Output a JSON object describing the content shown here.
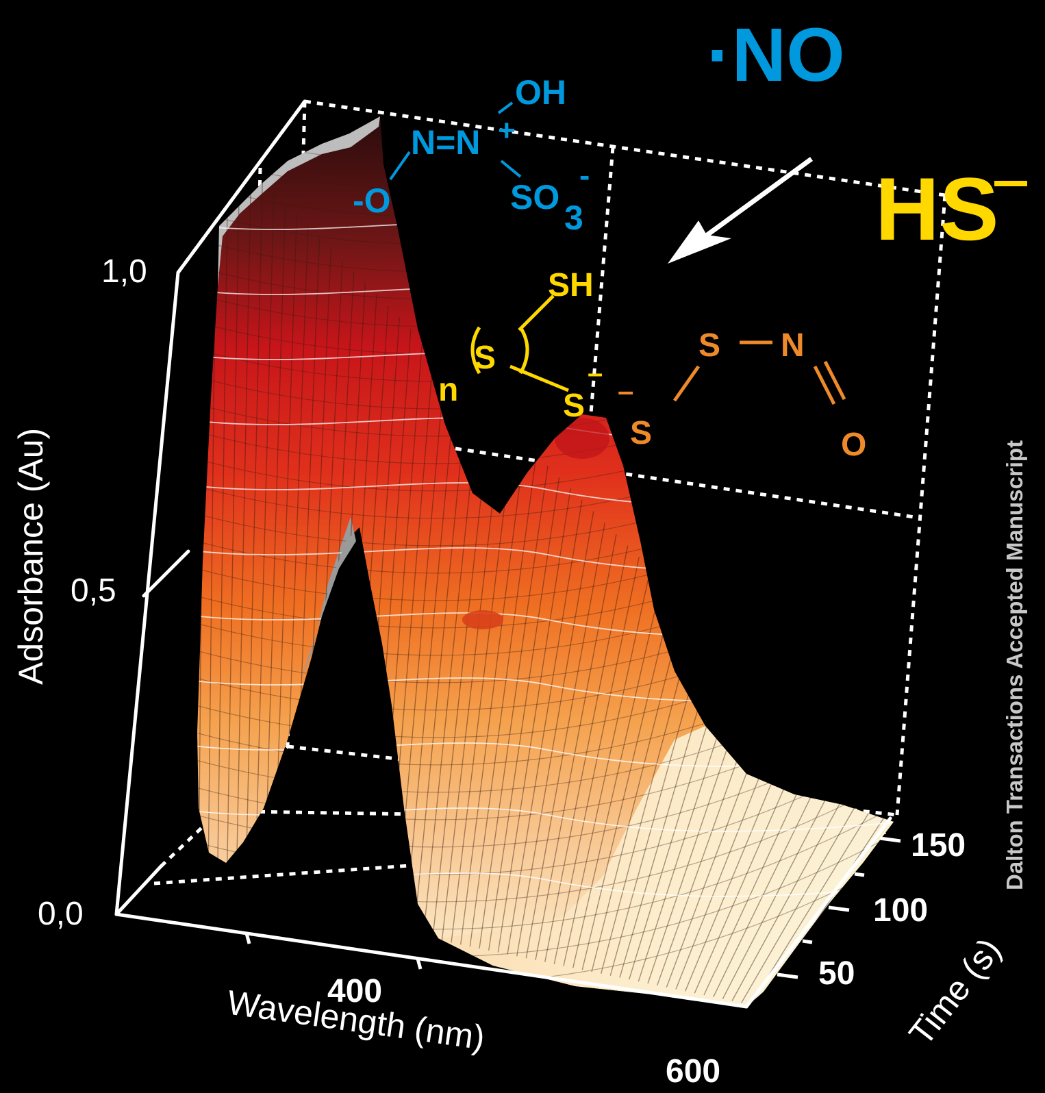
{
  "chart_data": {
    "type": "surface",
    "xlabel": "Wavelength (nm)",
    "ylabel": "Time (s)",
    "zlabel": "Adsorbance (Au)",
    "x_ticks": [
      "400",
      "600"
    ],
    "y_ticks": [
      "50",
      "100",
      "150"
    ],
    "z_ticks": [
      "0,0",
      "0,5",
      "1,0"
    ],
    "xlim": [
      250,
      600
    ],
    "ylim": [
      0,
      160
    ],
    "zlim": [
      0,
      1.0
    ],
    "grid": true,
    "series": [
      {
        "time": 150,
        "wavelength": [
          260,
          300,
          330,
          360,
          400,
          450,
          500,
          550,
          600
        ],
        "absorbance": [
          0.95,
          0.4,
          0.1,
          0.55,
          0.3,
          0.12,
          0.04,
          0.02,
          0.01
        ]
      },
      {
        "time": 100,
        "wavelength": [
          260,
          300,
          330,
          360,
          400,
          450,
          500,
          550,
          600
        ],
        "absorbance": [
          1.0,
          0.55,
          0.2,
          0.48,
          0.4,
          0.2,
          0.06,
          0.02,
          0.01
        ]
      },
      {
        "time": 50,
        "wavelength": [
          260,
          300,
          330,
          360,
          400,
          450,
          500,
          550,
          600
        ],
        "absorbance": [
          1.05,
          0.7,
          0.4,
          0.5,
          0.55,
          0.35,
          0.1,
          0.03,
          0.01
        ]
      },
      {
        "time": 0,
        "wavelength": [
          260,
          300,
          330,
          360,
          400,
          450,
          500,
          550,
          600
        ],
        "absorbance": [
          1.1,
          0.85,
          0.55,
          0.6,
          0.75,
          0.45,
          0.15,
          0.04,
          0.01
        ]
      }
    ]
  },
  "labels": {
    "no_radical": "·NO",
    "hs_ion": "HS",
    "hs_charge": "−",
    "watermark": "Dalton Transactions Accepted Manuscript"
  },
  "structures": {
    "nonoate": {
      "oh": "OH",
      "n_n": "N=N",
      "plus": "+",
      "o_minus": "-O",
      "so3": "SO",
      "sub3": "3",
      "so3_charge": "-"
    },
    "polysulfide": {
      "sh": "SH",
      "s_ring": "S",
      "n": "n",
      "s_minus": "S",
      "charge": "–"
    },
    "thionitrite": {
      "s1": "S",
      "n": "N",
      "s2": "S",
      "o": "O",
      "charge": "–"
    }
  },
  "colors": {
    "background": "#000000",
    "axis": "#ffffff",
    "no_blue": "#0099dd",
    "hs_yellow": "#ffd800",
    "orange": "#ee8a2a",
    "watermark": "#c8c8c8"
  }
}
